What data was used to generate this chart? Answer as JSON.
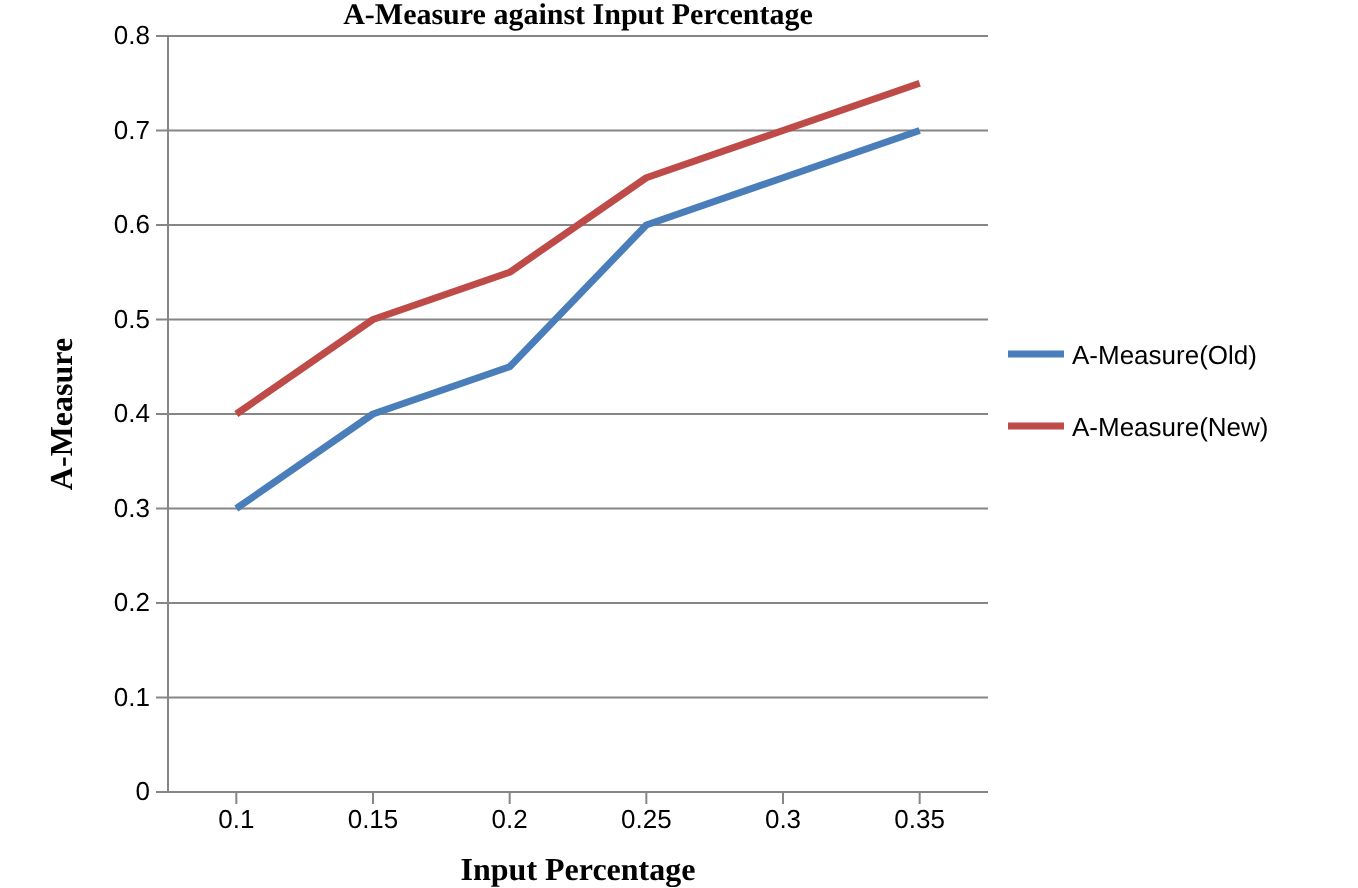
{
  "chart_data": {
    "type": "line",
    "title": "A-Measure against Input Percentage",
    "xlabel": "Input Percentage",
    "ylabel": "A-Measure",
    "categories": [
      "0.1",
      "0.15",
      "0.2",
      "0.25",
      "0.3",
      "0.35"
    ],
    "series": [
      {
        "name": "A-Measure(Old)",
        "color": "#4a7ebb",
        "values": [
          0.3,
          0.4,
          0.45,
          0.6,
          0.65,
          0.7
        ]
      },
      {
        "name": "A-Measure(New)",
        "color": "#be4b48",
        "values": [
          0.4,
          0.5,
          0.55,
          0.65,
          0.7,
          0.75
        ]
      }
    ],
    "ylim": [
      0,
      0.8
    ],
    "yticks": [
      {
        "value": 0,
        "label": "0"
      },
      {
        "value": 0.1,
        "label": "0.1"
      },
      {
        "value": 0.2,
        "label": "0.2"
      },
      {
        "value": 0.3,
        "label": "0.3"
      },
      {
        "value": 0.4,
        "label": "0.4"
      },
      {
        "value": 0.5,
        "label": "0.5"
      },
      {
        "value": 0.6,
        "label": "0.6"
      },
      {
        "value": 0.7,
        "label": "0.7"
      },
      {
        "value": 0.8,
        "label": "0.8"
      }
    ],
    "grid": "y",
    "legend": "right",
    "marker": "none",
    "line_style": "solid"
  }
}
